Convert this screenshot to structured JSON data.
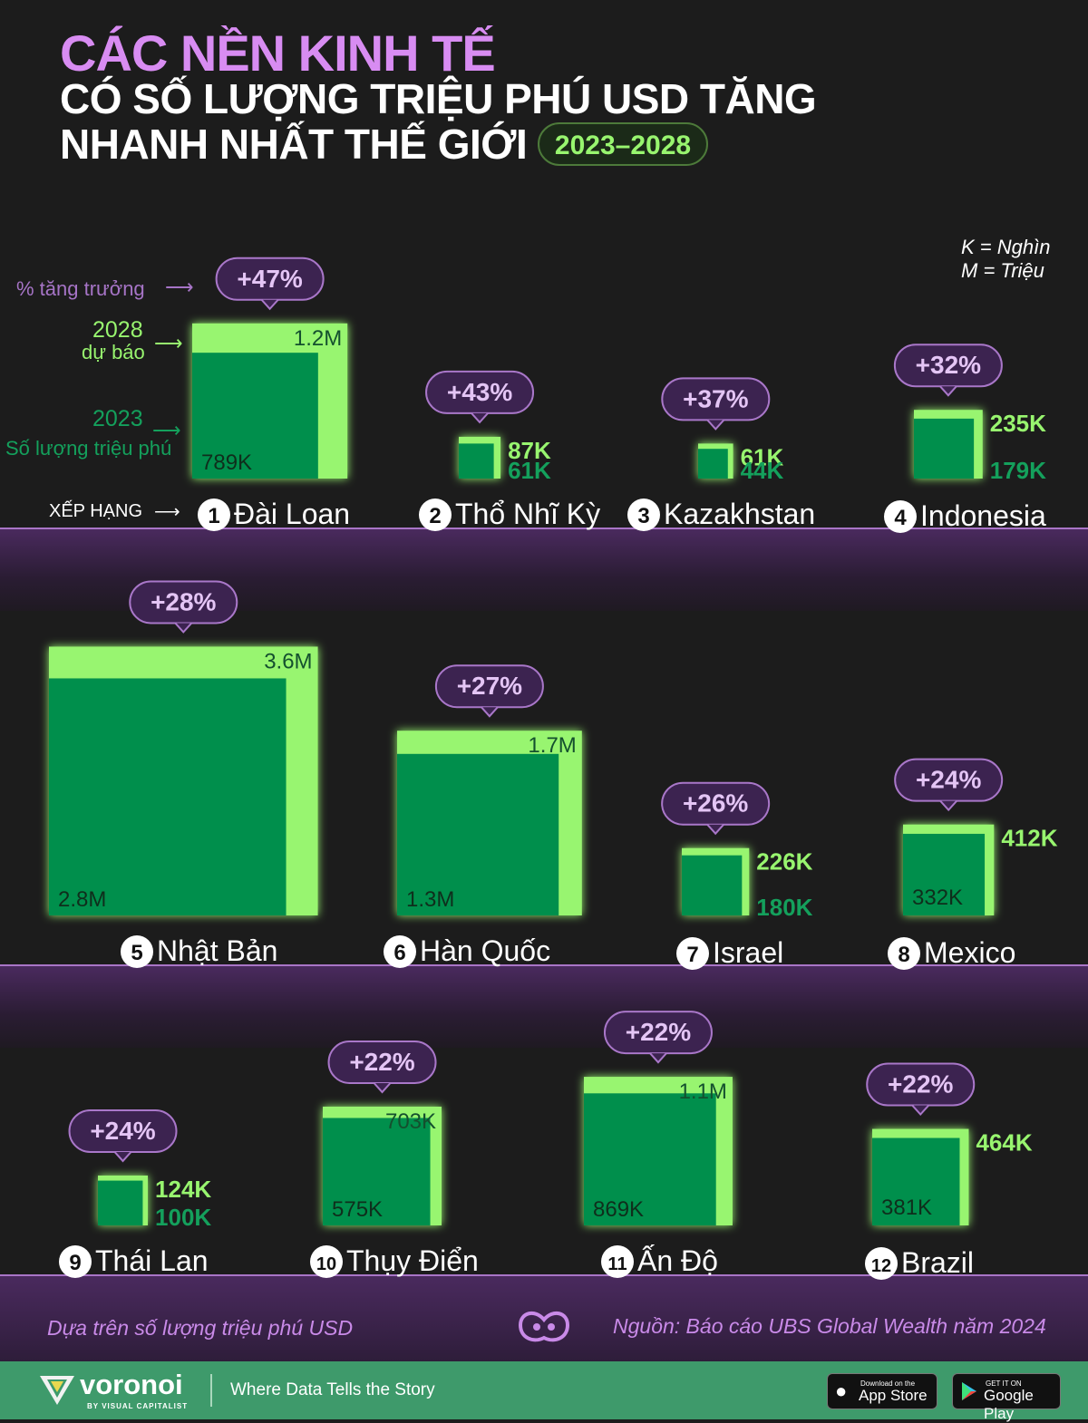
{
  "title": {
    "line1": "CÁC NỀN KINH TẾ",
    "line2": "CÓ SỐ LƯỢNG TRIỆU PHÚ USD TĂNG",
    "line3": "NHANH NHẤT THẾ GIỚI",
    "years": "2023–2028"
  },
  "units_note": {
    "k": "K = Nghìn",
    "m": "M = Triệu"
  },
  "annotations": {
    "growth": "% tăng trưởng",
    "forecast_year": "2028",
    "forecast_label": "dự báo",
    "base_year": "2023",
    "base_label": "Số lượng triệu phú",
    "rank": "XẾP HẠNG"
  },
  "colors": {
    "background": "#1c1c1c",
    "forecast_fill": "#98f56f",
    "base_fill": "#008f4c",
    "growth_bubble": "#3c2350",
    "growth_bubble_border": "#a977c9",
    "title_accent": "#d88cf2"
  },
  "footer": {
    "note": "Dựa trên số lượng triệu phú USD",
    "source": "Nguồn: Báo cáo UBS Global Wealth năm 2024",
    "brand": "voronoi",
    "brand_sub": "BY VISUAL CAPITALIST",
    "tagline": "Where Data Tells the Story",
    "appstore_small": "Download on the",
    "appstore_big": "App Store",
    "googleplay_small": "GET IT ON",
    "googleplay_big": "Google Play"
  },
  "chart_data": {
    "type": "area",
    "title": "CÁC NỀN KINH TẾ CÓ SỐ LƯỢNG TRIỆU PHÚ USD TĂNG NHANH NHẤT THẾ GIỚI 2023–2028",
    "series_names": [
      "2023",
      "2028"
    ],
    "items": [
      {
        "rank": 1,
        "country": "Đài Loan",
        "v2023": 789000,
        "v2028": 1200000,
        "label2023": "789K",
        "label2028": "1.2M",
        "growth": "+47%"
      },
      {
        "rank": 2,
        "country": "Thổ Nhĩ Kỳ",
        "v2023": 61000,
        "v2028": 87000,
        "label2023": "61K",
        "label2028": "87K",
        "growth": "+43%"
      },
      {
        "rank": 3,
        "country": "Kazakhstan",
        "v2023": 44000,
        "v2028": 61000,
        "label2023": "44K",
        "label2028": "61K",
        "growth": "+37%"
      },
      {
        "rank": 4,
        "country": "Indonesia",
        "v2023": 179000,
        "v2028": 235000,
        "label2023": "179K",
        "label2028": "235K",
        "growth": "+32%"
      },
      {
        "rank": 5,
        "country": "Nhật Bản",
        "v2023": 2800000,
        "v2028": 3600000,
        "label2023": "2.8M",
        "label2028": "3.6M",
        "growth": "+28%"
      },
      {
        "rank": 6,
        "country": "Hàn Quốc",
        "v2023": 1300000,
        "v2028": 1700000,
        "label2023": "1.3M",
        "label2028": "1.7M",
        "growth": "+27%"
      },
      {
        "rank": 7,
        "country": "Israel",
        "v2023": 180000,
        "v2028": 226000,
        "label2023": "180K",
        "label2028": "226K",
        "growth": "+26%"
      },
      {
        "rank": 8,
        "country": "Mexico",
        "v2023": 332000,
        "v2028": 412000,
        "label2023": "332K",
        "label2028": "412K",
        "growth": "+24%"
      },
      {
        "rank": 9,
        "country": "Thái Lan",
        "v2023": 100000,
        "v2028": 124000,
        "label2023": "100K",
        "label2028": "124K",
        "growth": "+24%"
      },
      {
        "rank": 10,
        "country": "Thụy Điển",
        "v2023": 575000,
        "v2028": 703000,
        "label2023": "575K",
        "label2028": "703K",
        "growth": "+22%"
      },
      {
        "rank": 11,
        "country": "Ấn Độ",
        "v2023": 869000,
        "v2028": 1100000,
        "label2023": "869K",
        "label2028": "1.1M",
        "growth": "+22%"
      },
      {
        "rank": 12,
        "country": "Brazil",
        "v2023": 381000,
        "v2028": 464000,
        "label2023": "381K",
        "label2028": "464K",
        "growth": "+22%"
      }
    ]
  }
}
